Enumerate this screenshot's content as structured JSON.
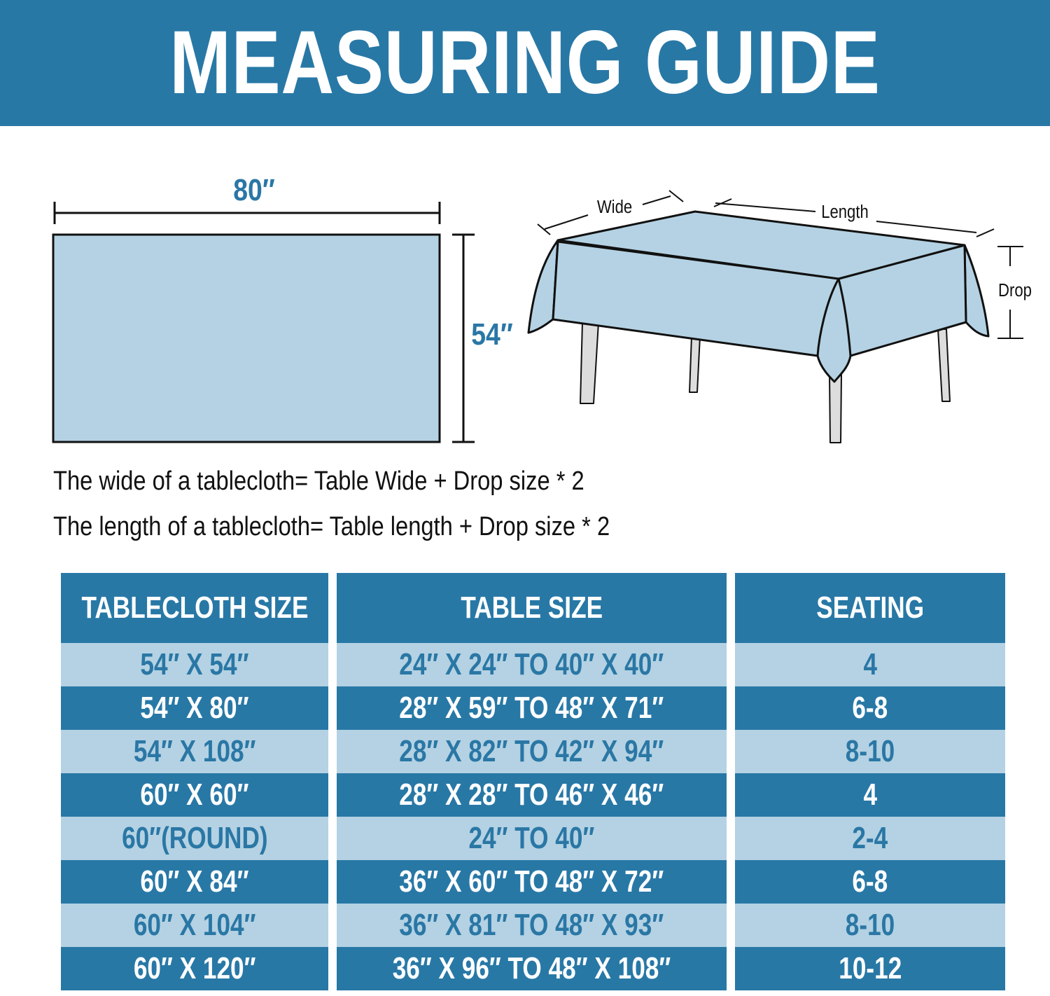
{
  "title": "MEASURING GUIDE",
  "flat_diagram": {
    "width_label": "80″",
    "height_label": "54″"
  },
  "table_diagram": {
    "wide_label": "Wide",
    "length_label": "Length",
    "drop_label": "Drop"
  },
  "formulas": [
    "The wide of a tablecloth= Table Wide + Drop size * 2",
    "The length of a tablecloth= Table length + Drop size * 2"
  ],
  "colors": {
    "primary": "#2878a6",
    "light": "#b4d2e3"
  },
  "size_table": {
    "headers": [
      "TABLECLOTH SIZE",
      "TABLE SIZE",
      "SEATING"
    ],
    "rows": [
      [
        "54″ X 54″",
        "24″ X 24″ TO 40″ X 40″",
        "4"
      ],
      [
        "54″ X 80″",
        "28″ X 59″ TO 48″ X 71″",
        "6-8"
      ],
      [
        "54″ X 108″",
        "28″ X 82″ TO 42″ X 94″",
        "8-10"
      ],
      [
        "60″ X 60″",
        "28″ X 28″ TO 46″ X 46″",
        "4"
      ],
      [
        "60″(ROUND)",
        "24″ TO 40″",
        "2-4"
      ],
      [
        "60″ X 84″",
        "36″ X 60″ TO 48″ X 72″",
        "6-8"
      ],
      [
        "60″ X 104″",
        "36″ X 81″ TO 48″ X 93″",
        "8-10"
      ],
      [
        "60″ X 120″",
        "36″ X 96″ TO 48″ X 108″",
        "10-12"
      ]
    ]
  }
}
